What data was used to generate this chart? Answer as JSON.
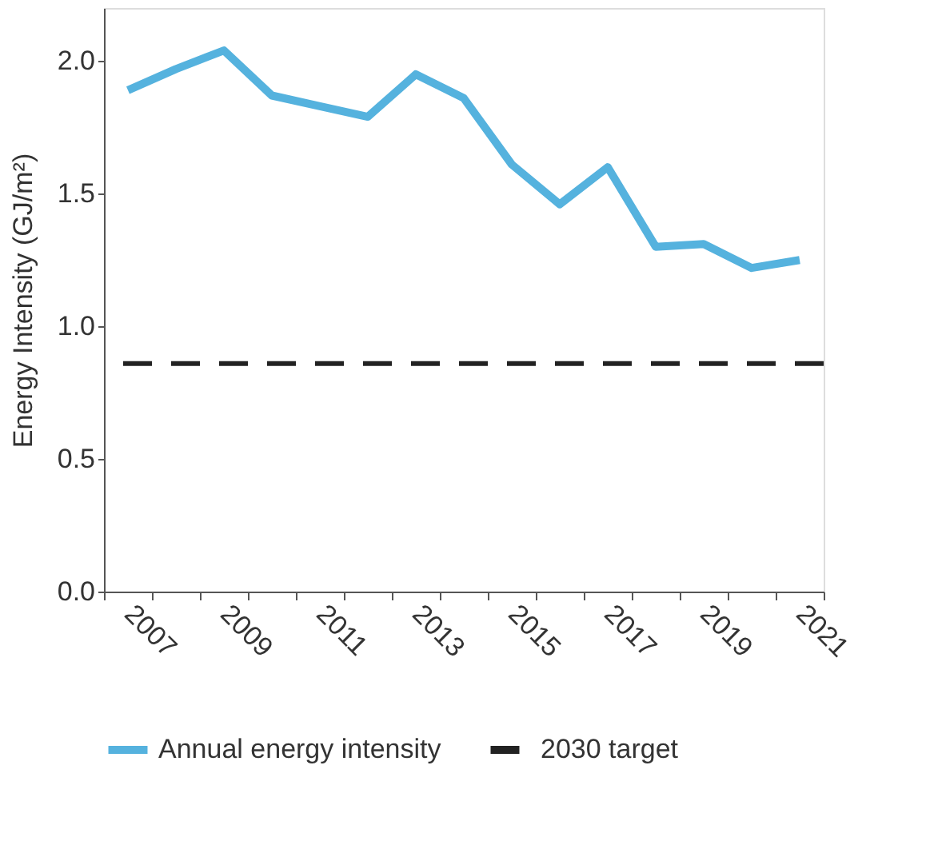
{
  "chart_data": {
    "type": "line",
    "ylabel": "Energy Intensity  (GJ/m²)",
    "categories": [
      "2007",
      null,
      "2009",
      null,
      "2011",
      null,
      "2013",
      null,
      "2015",
      null,
      "2017",
      null,
      "2019",
      null,
      "2021"
    ],
    "series": [
      {
        "name": "Annual energy intensity",
        "color": "#55b2de",
        "values": [
          1.89,
          1.97,
          2.04,
          1.87,
          1.83,
          1.79,
          1.95,
          1.86,
          1.61,
          1.46,
          1.6,
          1.3,
          1.31,
          1.22,
          1.25
        ]
      }
    ],
    "ref_lines": [
      {
        "axis": "y",
        "value": 0.86,
        "label": "2030 target",
        "color": "#222222",
        "line_style": "dashed"
      }
    ],
    "ylim": [
      0,
      2.2
    ],
    "yticks": [
      {
        "value": 0,
        "label": "0.0"
      },
      0.5,
      {
        "value": 1,
        "label": "1.0"
      },
      1.5,
      {
        "value": 2,
        "label": "2.0"
      }
    ],
    "grid": false,
    "legend": "bottom",
    "line_style": "solid",
    "marker": "none"
  }
}
